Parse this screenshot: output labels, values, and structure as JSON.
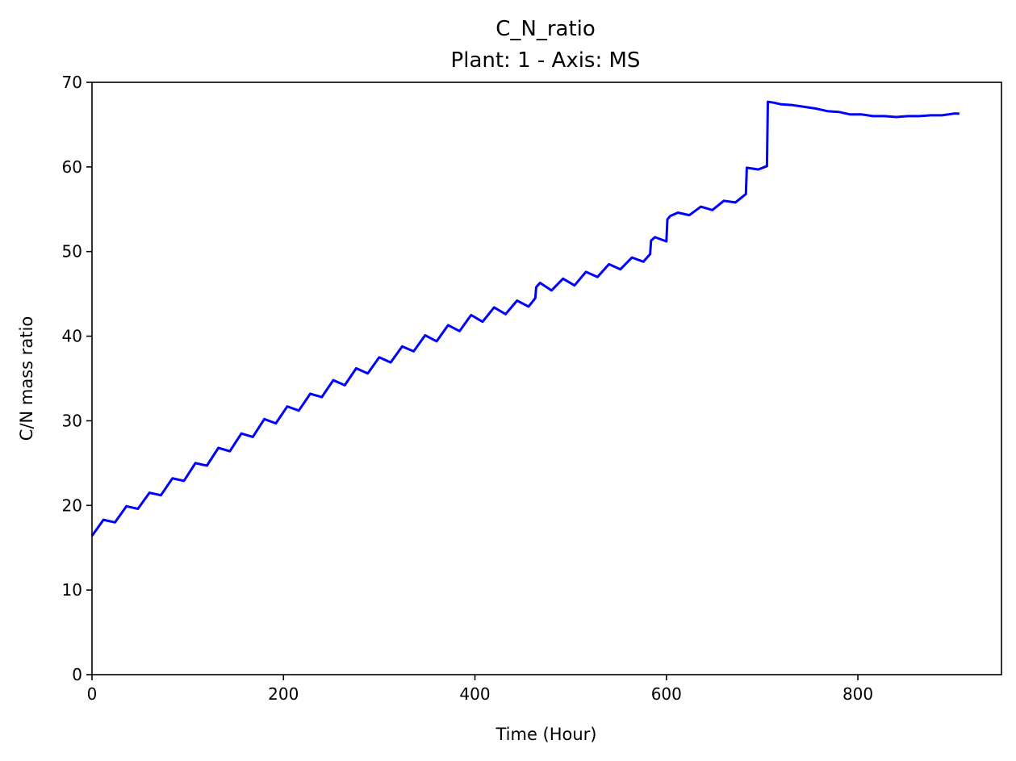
{
  "chart_data": {
    "type": "line",
    "title": "C_N_ratio",
    "subtitle": "Plant: 1 - Axis: MS",
    "xlabel": "Time (Hour)",
    "ylabel": "C/N mass ratio",
    "xlim": [
      0,
      950
    ],
    "ylim": [
      0,
      70
    ],
    "xticks": [
      0,
      200,
      400,
      600,
      800
    ],
    "yticks": [
      0,
      10,
      20,
      30,
      40,
      50,
      60,
      70
    ],
    "grid": false,
    "legend": "none",
    "series": [
      {
        "color": "#0000ff",
        "x": [
          0,
          12,
          24,
          36,
          48,
          60,
          72,
          84,
          96,
          108,
          120,
          132,
          144,
          156,
          168,
          180,
          192,
          204,
          216,
          228,
          240,
          252,
          264,
          276,
          288,
          300,
          312,
          324,
          336,
          348,
          360,
          372,
          384,
          396,
          408,
          420,
          432,
          444,
          456,
          463,
          464,
          468,
          480,
          492,
          504,
          516,
          528,
          540,
          552,
          564,
          576,
          583,
          584,
          588,
          600,
          601,
          604,
          612,
          624,
          636,
          648,
          660,
          672,
          683,
          684,
          696,
          705,
          706,
          712,
          720,
          732,
          744,
          756,
          768,
          780,
          792,
          804,
          816,
          828,
          840,
          852,
          864,
          876,
          888,
          900,
          906
        ],
        "y": [
          16.4,
          18.3,
          18.0,
          19.9,
          19.6,
          21.5,
          21.2,
          23.2,
          22.9,
          25.0,
          24.7,
          26.8,
          26.4,
          28.5,
          28.1,
          30.2,
          29.7,
          31.7,
          31.2,
          33.2,
          32.8,
          34.8,
          34.2,
          36.2,
          35.6,
          37.5,
          36.9,
          38.8,
          38.2,
          40.1,
          39.4,
          41.3,
          40.6,
          42.5,
          41.7,
          43.4,
          42.6,
          44.2,
          43.5,
          44.5,
          45.8,
          46.3,
          45.4,
          46.8,
          46.0,
          47.6,
          47.0,
          48.5,
          47.9,
          49.3,
          48.8,
          49.7,
          51.3,
          51.7,
          51.2,
          53.8,
          54.2,
          54.6,
          54.3,
          55.3,
          54.9,
          56.0,
          55.8,
          56.8,
          59.9,
          59.7,
          60.1,
          67.7,
          67.6,
          67.4,
          67.3,
          67.1,
          66.9,
          66.6,
          66.5,
          66.2,
          66.2,
          66.0,
          66.0,
          65.9,
          66.0,
          66.0,
          66.1,
          66.1,
          66.3,
          66.3
        ]
      }
    ]
  }
}
